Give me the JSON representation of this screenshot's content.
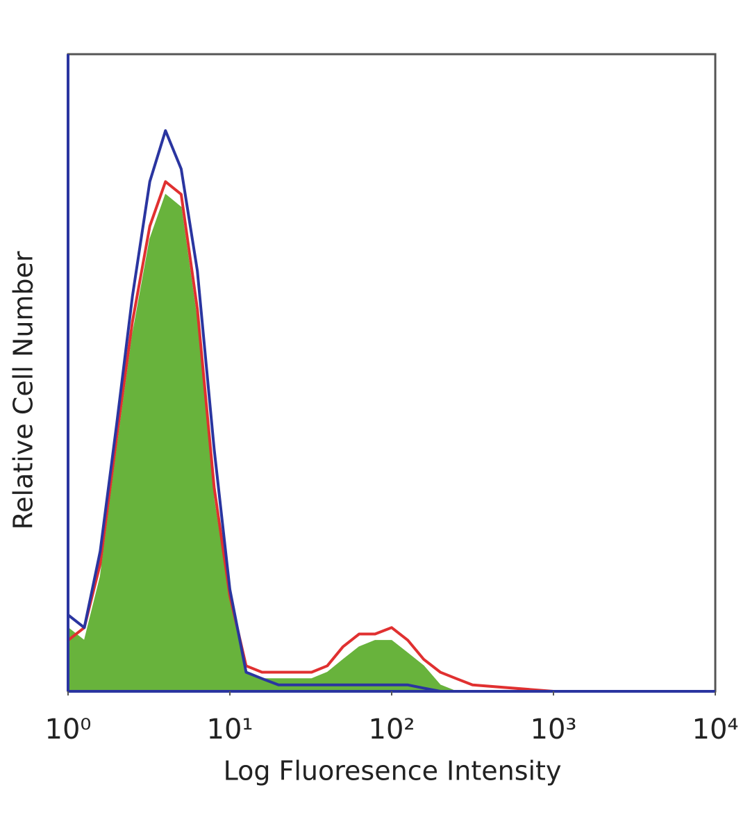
{
  "chart_data": {
    "type": "histogram-overlay",
    "x_label": "Log Fluoresence Intensity",
    "y_label": "Relative Cell Number",
    "x_scale": "log",
    "xlim": [
      1,
      10000
    ],
    "xticks": [
      {
        "value": 1,
        "label": "10⁰"
      },
      {
        "value": 10,
        "label": "10¹"
      },
      {
        "value": 100,
        "label": "10²"
      },
      {
        "value": 1000,
        "label": "10³"
      },
      {
        "value": 10000,
        "label": "10⁴"
      }
    ],
    "ylim": [
      0,
      100
    ],
    "x": [
      1,
      1.26,
      1.58,
      2,
      2.5,
      3.2,
      4,
      5,
      6.3,
      8,
      10,
      12.6,
      15.8,
      20,
      25,
      32,
      40,
      50,
      63,
      79,
      100,
      126,
      158,
      200,
      251,
      316,
      1000,
      10000
    ],
    "series": [
      {
        "color": "#68b33c",
        "filled": true,
        "values": [
          10,
          8,
          18,
          38,
          56,
          71,
          78,
          76,
          58,
          30,
          14,
          3,
          2,
          2,
          2,
          2,
          3,
          5,
          7,
          8,
          8,
          6,
          4,
          1,
          0,
          0,
          0,
          0
        ]
      },
      {
        "color": "#e03030",
        "filled": false,
        "values": [
          8,
          10,
          20,
          40,
          58,
          73,
          80,
          78,
          60,
          32,
          15,
          4,
          3,
          3,
          3,
          3,
          4,
          7,
          9,
          9,
          10,
          8,
          5,
          3,
          2,
          1,
          0,
          0
        ]
      },
      {
        "color": "#2a35a0",
        "filled": false,
        "values": [
          12,
          10,
          22,
          42,
          62,
          80,
          88,
          82,
          66,
          38,
          16,
          3,
          2,
          1,
          1,
          1,
          1,
          1,
          1,
          1,
          1,
          1,
          0.5,
          0,
          0,
          0,
          0,
          0
        ]
      }
    ]
  }
}
